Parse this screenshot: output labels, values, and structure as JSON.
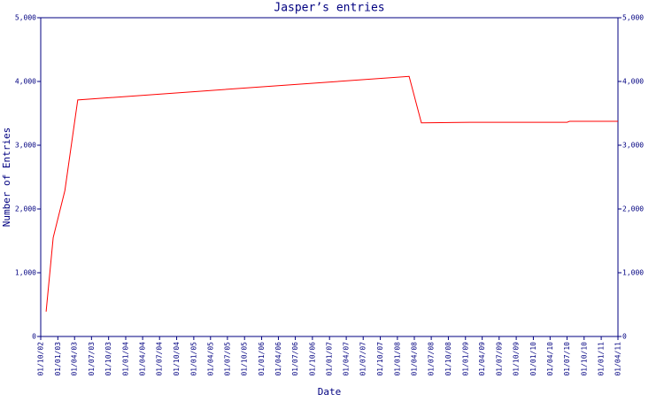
{
  "chart_data": {
    "type": "line",
    "title": "Jasper’s entries",
    "x_label": "Date",
    "y_label": "Number of Entries",
    "xlim": [
      "01/10/02",
      "01/04/11"
    ],
    "xticks": [
      "01/10/02",
      "01/01/03",
      "01/04/03",
      "01/07/03",
      "01/10/03",
      "01/01/04",
      "01/04/04",
      "01/07/04",
      "01/10/04",
      "01/01/05",
      "01/04/05",
      "01/07/05",
      "01/10/05",
      "01/01/06",
      "01/04/06",
      "01/07/06",
      "01/10/06",
      "01/01/07",
      "01/04/07",
      "01/07/07",
      "01/10/07",
      "01/01/08",
      "01/04/08",
      "01/07/08",
      "01/10/08",
      "01/01/09",
      "01/04/09",
      "01/07/09",
      "01/10/09",
      "01/01/10",
      "01/04/10",
      "01/07/10",
      "01/10/10",
      "01/01/11",
      "01/04/11"
    ],
    "ylim": [
      0,
      5000
    ],
    "yticks": [
      0,
      {
        "value": 1000,
        "label": "1,000"
      },
      {
        "value": 2000,
        "label": "2,000"
      },
      {
        "value": 3000,
        "label": "3,000"
      },
      {
        "value": 4000,
        "label": "4,000"
      },
      {
        "value": 5000,
        "label": "5,000"
      }
    ],
    "x": [
      "30/10/02",
      "07/12/02",
      "08/02/03",
      "18/04/03",
      "04/03/08",
      "09/05/08",
      "24/01/09",
      "01/07/10",
      "15/07/10",
      "01/04/11"
    ],
    "series": [
      {
        "color": "#ff0000",
        "values": [
          390,
          1550,
          2290,
          3710,
          4080,
          3350,
          3360,
          3360,
          3375,
          3375
        ]
      }
    ],
    "axis_color": "#000080"
  }
}
